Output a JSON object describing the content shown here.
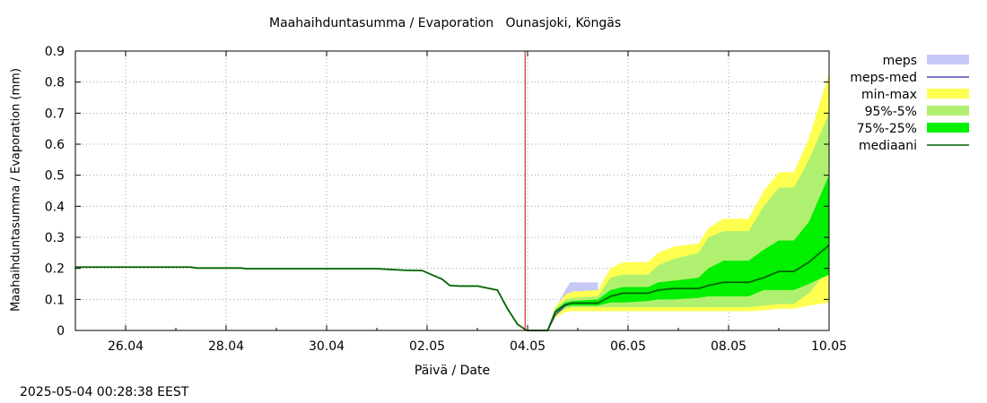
{
  "chart_data": {
    "type": "area",
    "title": "Maahaihduntasumma / Evaporation   Ounasjoki, Köngäs",
    "xlabel": "Päivä / Date",
    "ylabel": "Maahaihduntasumma / Evaporation (mm)",
    "ylim": [
      0,
      0.9
    ],
    "xlim_days": [
      -9.0,
      6.0
    ],
    "y_ticks": [
      "0",
      "0.1",
      "0.2",
      "0.3",
      "0.4",
      "0.5",
      "0.6",
      "0.7",
      "0.8",
      "0.9"
    ],
    "x_ticks": [
      {
        "day": -8,
        "label": "26.04"
      },
      {
        "day": -6,
        "label": "28.04"
      },
      {
        "day": -4,
        "label": "30.04"
      },
      {
        "day": -2,
        "label": "02.05"
      },
      {
        "day": 0,
        "label": "04.05"
      },
      {
        "day": 2,
        "label": "06.05"
      },
      {
        "day": 4,
        "label": "08.05"
      },
      {
        "day": 6,
        "label": "10.05"
      }
    ],
    "now_line_day": -0.05,
    "grid": true,
    "legend_position": "right",
    "legend": [
      {
        "label": "meps",
        "kind": "band",
        "color": "#c8c8f8"
      },
      {
        "label": "meps-med",
        "kind": "line",
        "color": "#4848b8"
      },
      {
        "label": "min-max",
        "kind": "band",
        "color": "#ffff50"
      },
      {
        "label": "95%-5%",
        "kind": "band",
        "color": "#b0f070"
      },
      {
        "label": "75%-25%",
        "kind": "band",
        "color": "#00f000"
      },
      {
        "label": "mediaani",
        "kind": "line",
        "color": "#006400"
      }
    ],
    "history": {
      "x": [
        -9.0,
        -6.7,
        -6.6,
        -5.7,
        -5.6,
        -3.0,
        -2.8,
        -2.45,
        -2.1,
        -1.7,
        -1.55,
        -1.35,
        -1.0,
        -0.6,
        -0.4,
        -0.2,
        -0.02,
        0.0
      ],
      "y": [
        0.204,
        0.204,
        0.201,
        0.201,
        0.199,
        0.199,
        0.197,
        0.194,
        0.193,
        0.165,
        0.145,
        0.143,
        0.143,
        0.13,
        0.07,
        0.02,
        0.0,
        0.0
      ]
    },
    "meps_band": {
      "x": [
        0.0,
        0.4,
        0.55,
        0.75,
        0.85,
        1.4
      ],
      "lower": [
        0.0,
        0.0,
        0.04,
        0.075,
        0.085,
        0.09
      ],
      "upper": [
        0.0,
        0.0,
        0.07,
        0.13,
        0.155,
        0.155
      ]
    },
    "meps_median": {
      "x": [
        0.0,
        0.4,
        0.55,
        0.75,
        0.85,
        1.4
      ],
      "y": [
        0.0,
        0.0,
        0.05,
        0.08,
        0.088,
        0.088
      ]
    },
    "forecast": {
      "x": [
        0.0,
        0.4,
        0.55,
        0.75,
        0.9,
        1.4,
        1.65,
        1.9,
        2.4,
        2.6,
        2.9,
        3.4,
        3.6,
        3.9,
        4.4,
        4.7,
        5.0,
        5.3,
        5.6,
        6.0
      ],
      "min": [
        0.0,
        0.0,
        0.04,
        0.06,
        0.062,
        0.062,
        0.062,
        0.062,
        0.062,
        0.062,
        0.062,
        0.062,
        0.062,
        0.062,
        0.062,
        0.065,
        0.07,
        0.07,
        0.08,
        0.09
      ],
      "p5": [
        0.0,
        0.0,
        0.05,
        0.07,
        0.075,
        0.075,
        0.075,
        0.075,
        0.075,
        0.075,
        0.075,
        0.075,
        0.075,
        0.075,
        0.075,
        0.08,
        0.085,
        0.085,
        0.12,
        0.2
      ],
      "p25": [
        0.0,
        0.0,
        0.055,
        0.078,
        0.08,
        0.08,
        0.09,
        0.09,
        0.095,
        0.1,
        0.1,
        0.105,
        0.11,
        0.11,
        0.11,
        0.13,
        0.13,
        0.13,
        0.15,
        0.18
      ],
      "median": [
        0.0,
        0.0,
        0.06,
        0.083,
        0.088,
        0.088,
        0.11,
        0.12,
        0.12,
        0.13,
        0.135,
        0.135,
        0.145,
        0.155,
        0.155,
        0.17,
        0.19,
        0.19,
        0.22,
        0.275
      ],
      "p75": [
        0.0,
        0.0,
        0.065,
        0.09,
        0.095,
        0.1,
        0.13,
        0.14,
        0.14,
        0.155,
        0.16,
        0.17,
        0.2,
        0.225,
        0.225,
        0.26,
        0.29,
        0.29,
        0.35,
        0.5
      ],
      "p95": [
        0.0,
        0.0,
        0.07,
        0.1,
        0.105,
        0.11,
        0.17,
        0.18,
        0.18,
        0.21,
        0.23,
        0.25,
        0.3,
        0.32,
        0.32,
        0.4,
        0.46,
        0.46,
        0.55,
        0.7
      ],
      "max": [
        0.0,
        0.0,
        0.075,
        0.115,
        0.125,
        0.13,
        0.2,
        0.22,
        0.22,
        0.25,
        0.27,
        0.28,
        0.33,
        0.36,
        0.36,
        0.45,
        0.51,
        0.51,
        0.62,
        0.83
      ]
    }
  },
  "footer": {
    "timestamp": "2025-05-04 00:28:38 EEST"
  }
}
